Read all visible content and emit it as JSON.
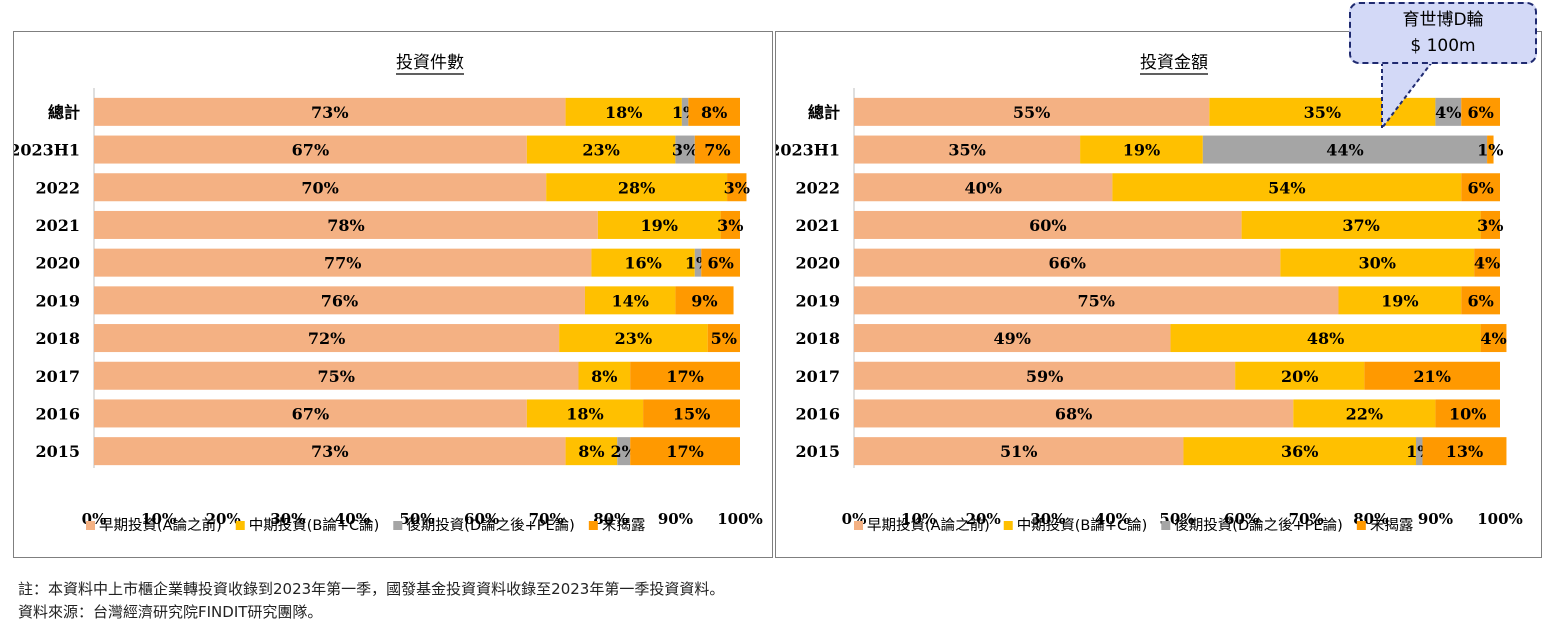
{
  "colors": {
    "early": "#f4b183",
    "mid": "#ffc000",
    "late": "#a5a5a5",
    "undisclosed": "#ff9900"
  },
  "chart_data": [
    {
      "type": "bar",
      "orientation": "horizontal-stacked-100",
      "title": "投資件數",
      "categories": [
        "總計",
        "2023H1",
        "2022",
        "2021",
        "2020",
        "2019",
        "2018",
        "2017",
        "2016",
        "2015"
      ],
      "series": [
        {
          "name": "早期投資(A論之前)",
          "values": [
            73,
            67,
            70,
            78,
            77,
            76,
            72,
            75,
            67,
            73
          ],
          "labels": [
            "73%",
            "67%",
            "70%",
            "78%",
            "77%",
            "76%",
            "72%",
            "75%",
            "67%",
            "73%"
          ]
        },
        {
          "name": "中期投資(B論+C論)",
          "values": [
            18,
            23,
            28,
            19,
            16,
            14,
            23,
            8,
            18,
            8
          ],
          "labels": [
            "18%",
            "23%",
            "28%",
            "19%",
            "16%",
            "14%",
            "23%",
            "8%",
            "18%",
            "8%"
          ]
        },
        {
          "name": "後期投資(D論之後+PE論)",
          "values": [
            1,
            3,
            0,
            0,
            1,
            0,
            0,
            0,
            0,
            2
          ],
          "labels": [
            "1%",
            "3%",
            "",
            "",
            "1%",
            "",
            "",
            "",
            "",
            "2%"
          ]
        },
        {
          "name": "末揭露",
          "values": [
            8,
            7,
            3,
            3,
            6,
            9,
            5,
            17,
            15,
            17
          ],
          "labels": [
            "8%",
            "7%",
            "3%",
            "3%",
            "6%",
            "9%",
            "5%",
            "17%",
            "15%",
            "17%"
          ]
        }
      ],
      "x_ticks": [
        "0%",
        "10%",
        "20%",
        "30%",
        "40%",
        "50%",
        "60%",
        "70%",
        "80%",
        "90%",
        "100%"
      ],
      "xlim": [
        0,
        100
      ],
      "legend_position": "bottom"
    },
    {
      "type": "bar",
      "orientation": "horizontal-stacked-100",
      "title": "投資金額",
      "categories": [
        "總計",
        "2023H1",
        "2022",
        "2021",
        "2020",
        "2019",
        "2018",
        "2017",
        "2016",
        "2015"
      ],
      "series": [
        {
          "name": "早期投資(A論之前)",
          "values": [
            55,
            35,
            40,
            60,
            66,
            75,
            49,
            59,
            68,
            51
          ],
          "labels": [
            "55%",
            "35%",
            "40%",
            "60%",
            "66%",
            "75%",
            "49%",
            "59%",
            "68%",
            "51%"
          ]
        },
        {
          "name": "中期投資(B論+C論)",
          "values": [
            35,
            19,
            54,
            37,
            30,
            19,
            48,
            20,
            22,
            36
          ],
          "labels": [
            "35%",
            "19%",
            "54%",
            "37%",
            "30%",
            "19%",
            "48%",
            "20%",
            "22%",
            "36%"
          ]
        },
        {
          "name": "後期投資(D論之後+PE論)",
          "values": [
            4,
            44,
            0,
            0,
            0,
            0,
            0,
            0,
            0,
            1
          ],
          "labels": [
            "4%",
            "44%",
            "",
            "",
            "",
            "",
            "",
            "",
            "",
            "1%"
          ]
        },
        {
          "name": "末揭露",
          "values": [
            6,
            1,
            6,
            3,
            4,
            6,
            4,
            21,
            10,
            13
          ],
          "labels": [
            "6%",
            "1%",
            "6%",
            "3%",
            "4%",
            "6%",
            "4%",
            "21%",
            "10%",
            "13%"
          ]
        }
      ],
      "x_ticks": [
        "0%",
        "10%",
        "20%",
        "30%",
        "40%",
        "50%",
        "60%",
        "70%",
        "80%",
        "90%",
        "100%"
      ],
      "xlim": [
        0,
        100
      ],
      "legend_position": "bottom",
      "annotation": {
        "line1": "育世博D輪",
        "line2": "$ 100m"
      }
    }
  ],
  "footnotes": {
    "note": "註：本資料中上市櫃企業轉投資收錄到2023年第一季，國發基金投資資料收錄至2023年第一季投資資料。",
    "source": "資料來源：台灣經濟研究院FINDIT研究團隊。"
  }
}
